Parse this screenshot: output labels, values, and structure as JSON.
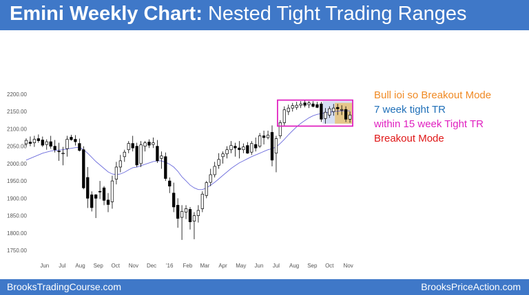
{
  "header": {
    "title_bold": "Emini Weekly Chart:",
    "title_rest": " Nested Tight Trading Ranges"
  },
  "footer": {
    "left": "BrooksTradingCourse.com",
    "right": "BrooksPriceAction.com"
  },
  "notes": [
    {
      "text": "Bull ioi so Breakout Mode",
      "color": "#f08a24"
    },
    {
      "text": "7 week tight TR",
      "color": "#1f6fb8"
    },
    {
      "text": "within 15 week Tight TR",
      "color": "#e020c0"
    },
    {
      "text": "Breakout Mode",
      "color": "#e01818"
    }
  ],
  "colors": {
    "header_bg": "#3f78c8",
    "bull_candle": "#ffffff",
    "bear_candle": "#000000",
    "moving_average": "#6b6bdc",
    "range_box_15wk": "#e020c0",
    "range_box_7wk_fill": "#c8d4f0",
    "breakout_mode_fill": "#e8c070"
  },
  "chart_data": {
    "type": "candlestick",
    "title": "",
    "ylim": [
      1735,
      2210
    ],
    "yticks": [
      "2200.00",
      "2150.00",
      "2100.00",
      "2050.00",
      "2000.00",
      "1950.00",
      "1900.00",
      "1850.00",
      "1800.00",
      "1750.00"
    ],
    "ytick_values": [
      2200,
      2150,
      2100,
      2050,
      2000,
      1950,
      1900,
      1850,
      1800,
      1750
    ],
    "xticks": [
      "Jun",
      "Jul",
      "Aug",
      "Sep",
      "Oct",
      "Nov",
      "Dec",
      "'16",
      "Feb",
      "Mar",
      "Apr",
      "May",
      "Jun",
      "Jul",
      "Aug",
      "Sep",
      "Oct",
      "Nov"
    ],
    "xtick_week_index": [
      4.5,
      8.8,
      13.2,
      17.6,
      21.8,
      26.2,
      30.6,
      35.0,
      39.4,
      43.6,
      48.0,
      52.4,
      56.8,
      61.0,
      65.4,
      69.8,
      74.0,
      78.6
    ],
    "candles": [
      {
        "o": 2057,
        "h": 2073,
        "l": 2050,
        "c": 2067
      },
      {
        "o": 2062,
        "h": 2078,
        "l": 2050,
        "c": 2058
      },
      {
        "o": 2060,
        "h": 2080,
        "l": 2048,
        "c": 2070
      },
      {
        "o": 2072,
        "h": 2084,
        "l": 2060,
        "c": 2066
      },
      {
        "o": 2068,
        "h": 2078,
        "l": 2048,
        "c": 2053
      },
      {
        "o": 2055,
        "h": 2070,
        "l": 2040,
        "c": 2063
      },
      {
        "o": 2063,
        "h": 2080,
        "l": 2043,
        "c": 2050
      },
      {
        "o": 2050,
        "h": 2068,
        "l": 2032,
        "c": 2040
      },
      {
        "o": 2036,
        "h": 2060,
        "l": 2008,
        "c": 2034
      },
      {
        "o": 2030,
        "h": 2048,
        "l": 1995,
        "c": 2030
      },
      {
        "o": 2043,
        "h": 2080,
        "l": 2020,
        "c": 2070
      },
      {
        "o": 2076,
        "h": 2083,
        "l": 2066,
        "c": 2069
      },
      {
        "o": 2070,
        "h": 2082,
        "l": 2052,
        "c": 2063
      },
      {
        "o": 2058,
        "h": 2072,
        "l": 2035,
        "c": 2038
      },
      {
        "o": 2040,
        "h": 2050,
        "l": 1926,
        "c": 1930
      },
      {
        "o": 1960,
        "h": 1990,
        "l": 1872,
        "c": 1900
      },
      {
        "o": 1910,
        "h": 1920,
        "l": 1862,
        "c": 1873
      },
      {
        "o": 1910,
        "h": 1912,
        "l": 1843,
        "c": 1900
      },
      {
        "o": 1920,
        "h": 1950,
        "l": 1898,
        "c": 1918
      },
      {
        "o": 1930,
        "h": 1935,
        "l": 1880,
        "c": 1894
      },
      {
        "o": 1895,
        "h": 1915,
        "l": 1860,
        "c": 1882
      },
      {
        "o": 1890,
        "h": 1965,
        "l": 1870,
        "c": 1950
      },
      {
        "o": 1955,
        "h": 2005,
        "l": 1940,
        "c": 1990
      },
      {
        "o": 1990,
        "h": 2025,
        "l": 1975,
        "c": 2008
      },
      {
        "o": 2020,
        "h": 2040,
        "l": 2005,
        "c": 2033
      },
      {
        "o": 2040,
        "h": 2065,
        "l": 2030,
        "c": 2058
      },
      {
        "o": 2058,
        "h": 2080,
        "l": 2035,
        "c": 2045
      },
      {
        "o": 2050,
        "h": 2060,
        "l": 1990,
        "c": 1996
      },
      {
        "o": 2000,
        "h": 2065,
        "l": 1990,
        "c": 2054
      },
      {
        "o": 2050,
        "h": 2065,
        "l": 2035,
        "c": 2060
      },
      {
        "o": 2062,
        "h": 2070,
        "l": 2045,
        "c": 2053
      },
      {
        "o": 2055,
        "h": 2075,
        "l": 2045,
        "c": 2060
      },
      {
        "o": 2050,
        "h": 2068,
        "l": 2002,
        "c": 2008
      },
      {
        "o": 2015,
        "h": 2035,
        "l": 1985,
        "c": 2022
      },
      {
        "o": 2020,
        "h": 2032,
        "l": 1950,
        "c": 1957
      },
      {
        "o": 1950,
        "h": 1960,
        "l": 1915,
        "c": 1935
      },
      {
        "o": 1915,
        "h": 1945,
        "l": 1860,
        "c": 1875
      },
      {
        "o": 1880,
        "h": 1900,
        "l": 1815,
        "c": 1842
      },
      {
        "o": 1845,
        "h": 1880,
        "l": 1780,
        "c": 1862
      },
      {
        "o": 1860,
        "h": 1880,
        "l": 1840,
        "c": 1870
      },
      {
        "o": 1868,
        "h": 1875,
        "l": 1810,
        "c": 1832
      },
      {
        "o": 1834,
        "h": 1860,
        "l": 1782,
        "c": 1850
      },
      {
        "o": 1850,
        "h": 1880,
        "l": 1830,
        "c": 1865
      },
      {
        "o": 1870,
        "h": 1920,
        "l": 1860,
        "c": 1912
      },
      {
        "o": 1908,
        "h": 1950,
        "l": 1900,
        "c": 1945
      },
      {
        "o": 1946,
        "h": 1985,
        "l": 1935,
        "c": 1968
      },
      {
        "o": 1968,
        "h": 2005,
        "l": 1960,
        "c": 1992
      },
      {
        "o": 1995,
        "h": 2030,
        "l": 1985,
        "c": 2012
      },
      {
        "o": 2020,
        "h": 2035,
        "l": 2000,
        "c": 2028
      },
      {
        "o": 2028,
        "h": 2050,
        "l": 2015,
        "c": 2040
      },
      {
        "o": 2040,
        "h": 2065,
        "l": 2030,
        "c": 2052
      },
      {
        "o": 2050,
        "h": 2060,
        "l": 2020,
        "c": 2045
      },
      {
        "o": 2045,
        "h": 2065,
        "l": 2015,
        "c": 2040
      },
      {
        "o": 2040,
        "h": 2058,
        "l": 2030,
        "c": 2048
      },
      {
        "o": 2052,
        "h": 2062,
        "l": 2028,
        "c": 2030
      },
      {
        "o": 2033,
        "h": 2065,
        "l": 2025,
        "c": 2058
      },
      {
        "o": 2055,
        "h": 2075,
        "l": 2035,
        "c": 2045
      },
      {
        "o": 2050,
        "h": 2088,
        "l": 2045,
        "c": 2080
      },
      {
        "o": 2080,
        "h": 2095,
        "l": 2055,
        "c": 2075
      },
      {
        "o": 2075,
        "h": 2095,
        "l": 2070,
        "c": 2082
      },
      {
        "o": 2090,
        "h": 2110,
        "l": 1992,
        "c": 2010
      },
      {
        "o": 2030,
        "h": 2080,
        "l": 1975,
        "c": 2072
      },
      {
        "o": 2080,
        "h": 2125,
        "l": 2072,
        "c": 2118
      },
      {
        "o": 2118,
        "h": 2165,
        "l": 2110,
        "c": 2155
      },
      {
        "o": 2150,
        "h": 2170,
        "l": 2140,
        "c": 2160
      },
      {
        "o": 2160,
        "h": 2175,
        "l": 2150,
        "c": 2167
      },
      {
        "o": 2162,
        "h": 2178,
        "l": 2155,
        "c": 2168
      },
      {
        "o": 2168,
        "h": 2180,
        "l": 2160,
        "c": 2172
      },
      {
        "o": 2175,
        "h": 2182,
        "l": 2162,
        "c": 2168
      },
      {
        "o": 2170,
        "h": 2180,
        "l": 2160,
        "c": 2175
      },
      {
        "o": 2172,
        "h": 2180,
        "l": 2162,
        "c": 2165
      },
      {
        "o": 2170,
        "h": 2178,
        "l": 2160,
        "c": 2162
      },
      {
        "o": 2172,
        "h": 2178,
        "l": 2120,
        "c": 2128
      },
      {
        "o": 2130,
        "h": 2160,
        "l": 2115,
        "c": 2148
      },
      {
        "o": 2140,
        "h": 2165,
        "l": 2132,
        "c": 2158
      },
      {
        "o": 2150,
        "h": 2172,
        "l": 2138,
        "c": 2160
      },
      {
        "o": 2162,
        "h": 2172,
        "l": 2140,
        "c": 2158
      },
      {
        "o": 2155,
        "h": 2168,
        "l": 2140,
        "c": 2156
      },
      {
        "o": 2156,
        "h": 2165,
        "l": 2120,
        "c": 2128
      },
      {
        "o": 2128,
        "h": 2150,
        "l": 2118,
        "c": 2140
      }
    ],
    "moving_average": [
      2010,
      2015,
      2020,
      2025,
      2030,
      2033,
      2036,
      2038,
      2039,
      2040,
      2042,
      2044,
      2046,
      2047,
      2040,
      2030,
      2018,
      2006,
      1996,
      1986,
      1976,
      1970,
      1968,
      1970,
      1975,
      1982,
      1988,
      1990,
      1994,
      1998,
      2002,
      2006,
      2008,
      2008,
      2004,
      1998,
      1990,
      1978,
      1962,
      1950,
      1938,
      1930,
      1925,
      1925,
      1930,
      1938,
      1946,
      1956,
      1966,
      1976,
      1986,
      1994,
      2002,
      2008,
      2014,
      2020,
      2025,
      2030,
      2035,
      2040,
      2043,
      2048,
      2058,
      2070,
      2083,
      2095,
      2106,
      2116,
      2124,
      2132,
      2138,
      2142,
      2144,
      2146,
      2148,
      2150,
      2151,
      2152,
      2152,
      2152
    ],
    "annotations": [
      {
        "type": "box",
        "label": "15 week tight TR",
        "start_week": 62,
        "end_week": 79,
        "low": 2108,
        "high": 2183
      },
      {
        "type": "box",
        "label": "7 week tight TR",
        "start_week": 73,
        "end_week": 79,
        "low": 2115,
        "high": 2180
      },
      {
        "type": "box",
        "label": "Bull ioi breakout mode",
        "start_week": 76,
        "end_week": 79,
        "low": 2115,
        "high": 2175
      }
    ]
  }
}
